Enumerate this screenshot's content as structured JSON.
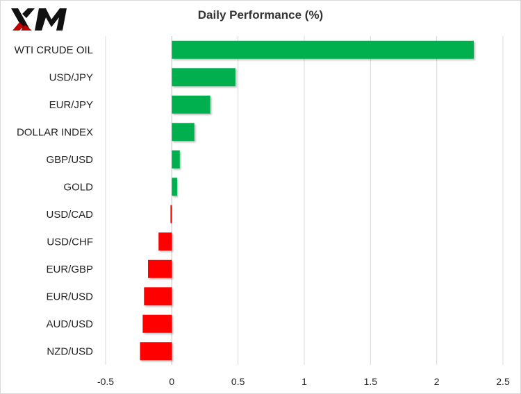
{
  "brand": {
    "name": "XM"
  },
  "colors": {
    "positive": "#00b050",
    "negative": "#ff0000",
    "grid": "#d9d9d9",
    "axis": "#bfbfbf"
  },
  "chart_data": {
    "type": "bar",
    "orientation": "horizontal",
    "title": "Daily Performance  (%)",
    "categories": [
      "WTI CRUDE OIL",
      "USD/JPY",
      "EUR/JPY",
      "DOLLAR INDEX",
      "GBP/USD",
      "GOLD",
      "USD/CAD",
      "USD/CHF",
      "EUR/GBP",
      "EUR/USD",
      "AUD/USD",
      "NZD/USD"
    ],
    "values": [
      2.28,
      0.48,
      0.29,
      0.17,
      0.06,
      0.04,
      -0.01,
      -0.1,
      -0.18,
      -0.21,
      -0.22,
      -0.24
    ],
    "xlim": [
      -0.5,
      2.5
    ],
    "xticks": [
      -0.5,
      0,
      0.5,
      1,
      1.5,
      2,
      2.5
    ],
    "xtick_labels": [
      "-0.5",
      "0",
      "0.5",
      "1",
      "1.5",
      "2",
      "2.5"
    ],
    "grid": true,
    "legend": "none"
  }
}
